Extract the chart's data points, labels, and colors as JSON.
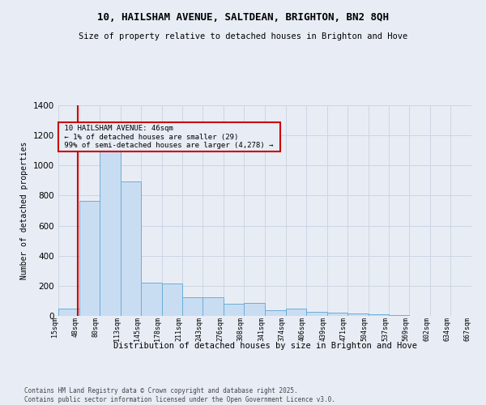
{
  "title_line1": "10, HAILSHAM AVENUE, SALTDEAN, BRIGHTON, BN2 8QH",
  "title_line2": "Size of property relative to detached houses in Brighton and Hove",
  "xlabel": "Distribution of detached houses by size in Brighton and Hove",
  "ylabel": "Number of detached properties",
  "annotation_line1": "10 HAILSHAM AVENUE: 46sqm",
  "annotation_line2": "← 1% of detached houses are smaller (29)",
  "annotation_line3": "99% of semi-detached houses are larger (4,278) →",
  "property_size": 46,
  "bin_edges": [
    15,
    48,
    80,
    113,
    145,
    178,
    211,
    243,
    276,
    308,
    341,
    374,
    406,
    439,
    471,
    504,
    537,
    569,
    602,
    634,
    667
  ],
  "bin_counts": [
    50,
    765,
    1095,
    895,
    220,
    215,
    125,
    125,
    80,
    85,
    40,
    50,
    25,
    20,
    15,
    10,
    5,
    2,
    0,
    2
  ],
  "bar_color": "#c9ddf2",
  "bar_edge_color": "#6baed6",
  "grid_color": "#ccd5e3",
  "background_color": "#e8edf5",
  "vline_color": "#cc0000",
  "ylim": [
    0,
    1400
  ],
  "yticks": [
    0,
    200,
    400,
    600,
    800,
    1000,
    1200,
    1400
  ],
  "footer_line1": "Contains HM Land Registry data © Crown copyright and database right 2025.",
  "footer_line2": "Contains public sector information licensed under the Open Government Licence v3.0."
}
